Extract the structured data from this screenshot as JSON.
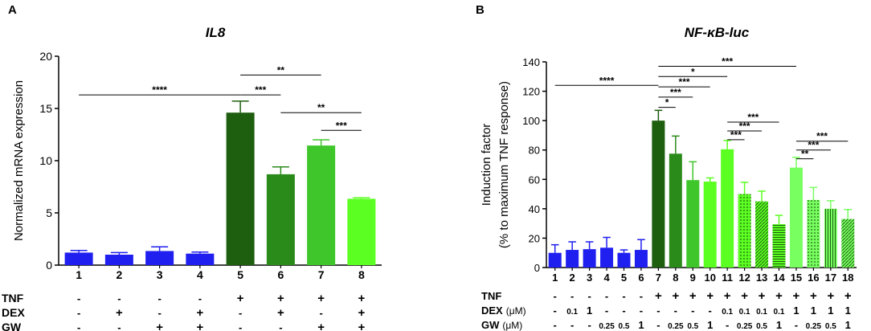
{
  "chart_data": [
    {
      "panel_label": "A",
      "type": "bar",
      "title": "IL8",
      "ylabel": "Normalized mRNA expression",
      "xlabel": "",
      "ylim": [
        0,
        20
      ],
      "yticks": [
        "0",
        "5",
        "10",
        "15",
        "20"
      ],
      "categories": [
        "1",
        "2",
        "3",
        "4",
        "5",
        "6",
        "7",
        "8"
      ],
      "values": [
        1.2,
        1.0,
        1.35,
        1.1,
        14.6,
        8.7,
        11.45,
        6.35
      ],
      "errors": [
        0.2,
        0.2,
        0.4,
        0.15,
        1.1,
        0.7,
        0.55,
        0.1
      ],
      "colors": [
        "#1f1ff0",
        "#1f1ff0",
        "#1f1ff0",
        "#1f1ff0",
        "#1d5e0f",
        "#2a8a1a",
        "#3ec62a",
        "#5cff22"
      ],
      "patterns": [
        "",
        "",
        "",
        "",
        "",
        "",
        "",
        ""
      ],
      "conditions": [
        {
          "label": "TNF",
          "values": [
            "-",
            "-",
            "-",
            "-",
            "+",
            "+",
            "+",
            "+"
          ]
        },
        {
          "label": "DEX",
          "values": [
            "-",
            "+",
            "-",
            "+",
            "-",
            "+",
            "-",
            "+"
          ]
        },
        {
          "label": "GW",
          "values": [
            "-",
            "-",
            "+",
            "+",
            "-",
            "-",
            "+",
            "+"
          ]
        }
      ],
      "significance": [
        {
          "from": 1,
          "to": 5,
          "y": 16.3,
          "label": "****"
        },
        {
          "from": 5,
          "to": 6,
          "y": 16.3,
          "label": "***"
        },
        {
          "from": 5,
          "to": 7,
          "y": 18.2,
          "label": "**"
        },
        {
          "from": 6,
          "to": 8,
          "y": 14.6,
          "label": "**"
        },
        {
          "from": 7,
          "to": 8,
          "y": 12.9,
          "label": "***"
        }
      ]
    },
    {
      "panel_label": "B",
      "type": "bar",
      "title": "NF-κB-luc",
      "ylabel": "Induction factor",
      "ylabel2": "(% to maximum TNF response)",
      "xlabel": "",
      "ylim": [
        0,
        140
      ],
      "yticks": [
        "0",
        "20",
        "40",
        "60",
        "80",
        "100",
        "120",
        "140"
      ],
      "categories": [
        "1",
        "2",
        "3",
        "4",
        "5",
        "6",
        "7",
        "8",
        "9",
        "10",
        "11",
        "12",
        "13",
        "14",
        "15",
        "16",
        "17",
        "18"
      ],
      "values": [
        10,
        12,
        12.5,
        13.5,
        10,
        12,
        100,
        77.5,
        59.5,
        58.5,
        80.5,
        50,
        45,
        29.5,
        68,
        46,
        40,
        33
      ],
      "errors": [
        5.5,
        5.5,
        5,
        7,
        2,
        7,
        7,
        12,
        12.5,
        2.5,
        6,
        8,
        7,
        6,
        7,
        8.5,
        5.5,
        6.5
      ],
      "colors": [
        "#1f1ff0",
        "#1f1ff0",
        "#1f1ff0",
        "#1f1ff0",
        "#1f1ff0",
        "#1f1ff0",
        "#1d5e0f",
        "#2a8a1a",
        "#3ec62a",
        "#5cff22",
        "#5cff22",
        "#5cff22",
        "#5cff22",
        "#5cff22",
        "#78ff60",
        "#78ff60",
        "#78ff60",
        "#78ff60"
      ],
      "patterns": [
        "",
        "",
        "",
        "",
        "",
        "",
        "",
        "",
        "",
        "",
        "",
        "dots",
        "diag",
        "hlines",
        "",
        "dots",
        "vlines",
        "diag"
      ],
      "conditions": [
        {
          "label": "TNF",
          "values": [
            "-",
            "-",
            "-",
            "-",
            "-",
            "-",
            "+",
            "+",
            "+",
            "+",
            "+",
            "+",
            "+",
            "+",
            "+",
            "+",
            "+",
            "+"
          ]
        },
        {
          "label": "DEX",
          "unit": "(μM)",
          "values": [
            "-",
            "0.1",
            "1",
            "-",
            "-",
            "-",
            "-",
            "-",
            "-",
            "-",
            "0.1",
            "0.1",
            "0.1",
            "0.1",
            "1",
            "1",
            "1",
            "1"
          ]
        },
        {
          "label": "GW",
          "unit": "(μM)",
          "values": [
            "-",
            "-",
            "-",
            "0.25",
            "0.5",
            "1",
            "-",
            "0.25",
            "0.5",
            "1",
            "-",
            "0.25",
            "0.5",
            "1",
            "-",
            "0.25",
            "0.5",
            "1"
          ]
        }
      ],
      "significance": [
        {
          "from": 1,
          "to": 7,
          "y": 124,
          "label": "****"
        },
        {
          "from": 7,
          "to": 8,
          "y": 109,
          "label": "*"
        },
        {
          "from": 7,
          "to": 9,
          "y": 116,
          "label": "***"
        },
        {
          "from": 7,
          "to": 10,
          "y": 123,
          "label": "***"
        },
        {
          "from": 7,
          "to": 11,
          "y": 130,
          "label": "*"
        },
        {
          "from": 7,
          "to": 15,
          "y": 137,
          "label": "***"
        },
        {
          "from": 11,
          "to": 12,
          "y": 87,
          "label": "***"
        },
        {
          "from": 11,
          "to": 13,
          "y": 93,
          "label": "***"
        },
        {
          "from": 11,
          "to": 14,
          "y": 99,
          "label": "***"
        },
        {
          "from": 15,
          "to": 16,
          "y": 74,
          "label": "**"
        },
        {
          "from": 15,
          "to": 17,
          "y": 80,
          "label": "***"
        },
        {
          "from": 15,
          "to": 18,
          "y": 86,
          "label": "***"
        }
      ]
    }
  ]
}
